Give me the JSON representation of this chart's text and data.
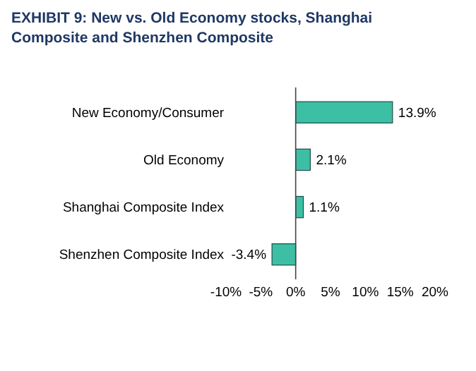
{
  "chart_data": {
    "type": "bar",
    "orientation": "horizontal",
    "title": "EXHIBIT 9:  New vs. Old Economy stocks, Shanghai Composite and Shenzhen Composite",
    "categories": [
      "New Economy/Consumer",
      "Old Economy",
      "Shanghai Composite Index",
      "Shenzhen Composite Index"
    ],
    "values": [
      13.9,
      2.1,
      1.1,
      -3.4
    ],
    "value_labels": [
      "13.9%",
      "2.1%",
      "1.1%",
      "-3.4%"
    ],
    "color": "#3dbfa5",
    "xlim": [
      -10,
      20
    ],
    "xticks": [
      {
        "value": -10,
        "label": "-10%"
      },
      {
        "value": -5,
        "label": "-5%"
      },
      {
        "value": 0,
        "label": "0%"
      },
      {
        "value": 5,
        "label": "5%"
      },
      {
        "value": 10,
        "label": "10%"
      },
      {
        "value": 15,
        "label": "15%"
      },
      {
        "value": 20,
        "label": "20%"
      }
    ]
  }
}
